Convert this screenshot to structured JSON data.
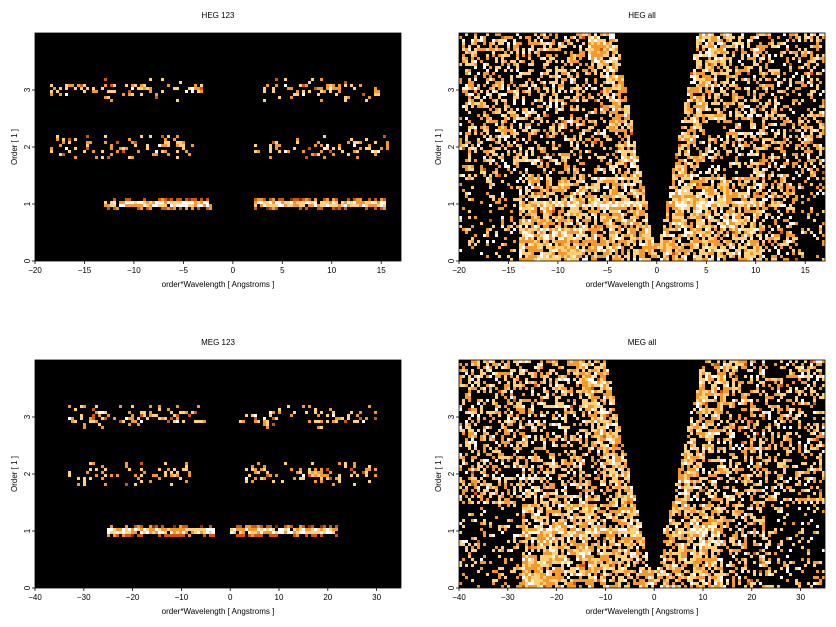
{
  "chart_data": [
    {
      "type": "heatmap",
      "title": "HEG 123",
      "xlabel": "order*Wavelength [ Angstroms ]",
      "ylabel": "Order [ 1 ]",
      "xlim": [
        -20,
        17
      ],
      "ylim": [
        0,
        4
      ],
      "xticks": [
        -20,
        -15,
        -10,
        -5,
        0,
        5,
        10,
        15
      ],
      "yticks": [
        0,
        1,
        2,
        3
      ],
      "background": "#000000",
      "colormap": [
        "#3a0800",
        "#8a2a05",
        "#d0550f",
        "#f59a2a",
        "#ffd27a",
        "#ffffff"
      ],
      "bands": [
        {
          "order": 1,
          "x_ranges": [
            [
              -13,
              -2
            ],
            [
              2,
              15.5
            ]
          ],
          "intensity": "high"
        },
        {
          "order": 2,
          "x_ranges": [
            [
              -18.5,
              -4
            ],
            [
              2,
              16
            ]
          ],
          "intensity": "low"
        },
        {
          "order": 3,
          "x_ranges": [
            [
              -18.5,
              -3
            ],
            [
              3,
              15
            ]
          ],
          "intensity": "low"
        }
      ],
      "cone": false
    },
    {
      "type": "heatmap",
      "title": "HEG all",
      "xlabel": "order*Wavelength [ Angstroms ]",
      "ylabel": "Order [ 1 ]",
      "xlim": [
        -20,
        17
      ],
      "ylim": [
        0,
        4
      ],
      "xticks": [
        -20,
        -15,
        -10,
        -5,
        0,
        5,
        10,
        15
      ],
      "yticks": [
        0,
        1,
        2,
        3
      ],
      "background": "#000000",
      "colormap": [
        "#3a0800",
        "#8a2a05",
        "#d0550f",
        "#f59a2a",
        "#ffd27a",
        "#ffffff"
      ],
      "bands": [
        {
          "order": 1,
          "x_ranges": [
            [
              -13,
              -1
            ],
            [
              1,
              11
            ]
          ],
          "intensity": "high"
        }
      ],
      "cone": true
    },
    {
      "type": "heatmap",
      "title": "MEG 123",
      "xlabel": "order*Wavelength [ Angstroms ]",
      "ylabel": "Order [ 1 ]",
      "xlim": [
        -40,
        35
      ],
      "ylim": [
        0,
        4
      ],
      "xticks": [
        -40,
        -30,
        -20,
        -10,
        0,
        10,
        20,
        30
      ],
      "yticks": [
        0,
        1,
        2,
        3
      ],
      "background": "#000000",
      "colormap": [
        "#3a0800",
        "#8a2a05",
        "#d0550f",
        "#f59a2a",
        "#ffd27a",
        "#ffffff"
      ],
      "bands": [
        {
          "order": 1,
          "x_ranges": [
            [
              -25,
              -3
            ],
            [
              0,
              22
            ]
          ],
          "intensity": "high"
        },
        {
          "order": 2,
          "x_ranges": [
            [
              -33,
              -8
            ],
            [
              3,
              30
            ]
          ],
          "intensity": "low"
        },
        {
          "order": 3,
          "x_ranges": [
            [
              -33,
              -5
            ],
            [
              2,
              30
            ]
          ],
          "intensity": "low"
        }
      ],
      "cone": false
    },
    {
      "type": "heatmap",
      "title": "MEG all",
      "xlabel": "order*Wavelength [ Angstroms ]",
      "ylabel": "Order [ 1 ]",
      "xlim": [
        -40,
        35
      ],
      "ylim": [
        0,
        4
      ],
      "xticks": [
        -40,
        -30,
        -20,
        -10,
        0,
        10,
        20,
        30
      ],
      "yticks": [
        0,
        1,
        2,
        3
      ],
      "background": "#000000",
      "colormap": [
        "#3a0800",
        "#8a2a05",
        "#d0550f",
        "#f59a2a",
        "#ffd27a",
        "#ffffff"
      ],
      "bands": [
        {
          "order": 1,
          "x_ranges": [
            [
              -27,
              -3
            ],
            [
              2,
              14
            ]
          ],
          "intensity": "high"
        }
      ],
      "cone": true
    }
  ]
}
